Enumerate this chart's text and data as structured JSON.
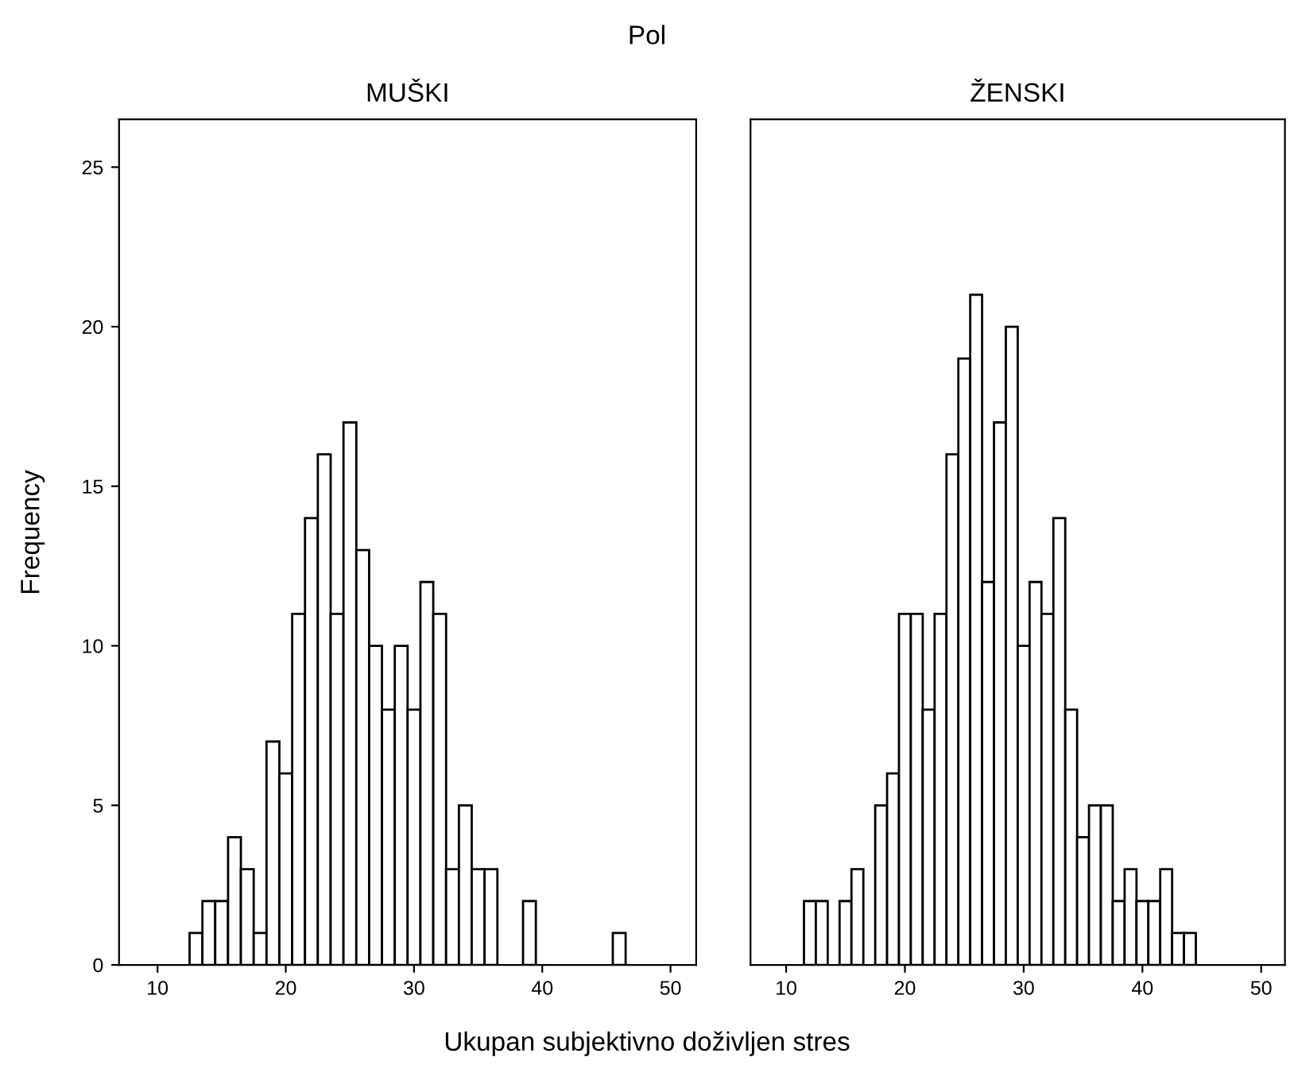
{
  "chart_data": [
    {
      "type": "histogram",
      "title": "MUŠKI",
      "ylabel": "Frequency",
      "xlabel": "Ukupan subjektivno doživljen stres",
      "annotations": [
        "Pol"
      ],
      "color": "#ffffff",
      "bins": [
        12.5,
        13.5,
        14.5,
        15.5,
        16.5,
        17.5,
        18.5,
        19.5,
        20.5,
        21.5,
        22.5,
        23.5,
        24.5,
        25.5,
        26.5,
        27.5,
        28.5,
        29.5,
        30.5,
        31.5,
        32.5,
        33.5,
        34.5,
        35.5,
        36.5,
        37.5,
        38.5,
        39.5,
        40.5,
        41.5,
        42.5,
        43.5,
        44.5,
        45.5,
        46.5
      ],
      "values": [
        1,
        2,
        2,
        4,
        3,
        1,
        7,
        6,
        11,
        14,
        16,
        11,
        17,
        13,
        10,
        8,
        10,
        8,
        12,
        11,
        3,
        5,
        3,
        3,
        0,
        0,
        2,
        0,
        0,
        0,
        0,
        0,
        0,
        1
      ],
      "xlim": [
        7,
        52
      ],
      "xticks": [
        10,
        20,
        30,
        40,
        50
      ],
      "ylim": [
        0,
        26.5
      ],
      "yticks": [
        0,
        5,
        10,
        15,
        20,
        25
      ],
      "grid": false
    },
    {
      "type": "histogram",
      "title": "ŽENSKI",
      "color": "#ffffff",
      "bins": [
        11.5,
        12.5,
        13.5,
        14.5,
        15.5,
        16.5,
        17.5,
        18.5,
        19.5,
        20.5,
        21.5,
        22.5,
        23.5,
        24.5,
        25.5,
        26.5,
        27.5,
        28.5,
        29.5,
        30.5,
        31.5,
        32.5,
        33.5,
        34.5,
        35.5,
        36.5,
        37.5,
        38.5,
        39.5,
        40.5,
        41.5,
        42.5,
        43.5,
        44.5
      ],
      "values": [
        2,
        2,
        0,
        2,
        3,
        0,
        5,
        6,
        11,
        11,
        8,
        11,
        16,
        19,
        21,
        12,
        17,
        20,
        10,
        12,
        11,
        14,
        8,
        4,
        5,
        5,
        2,
        3,
        2,
        2,
        3,
        1,
        1
      ],
      "xlim": [
        7,
        52
      ],
      "xticks": [
        10,
        20,
        30,
        40,
        50
      ],
      "ylim": [
        0,
        26.5
      ],
      "tick_labels": "x",
      "grid": false
    }
  ]
}
